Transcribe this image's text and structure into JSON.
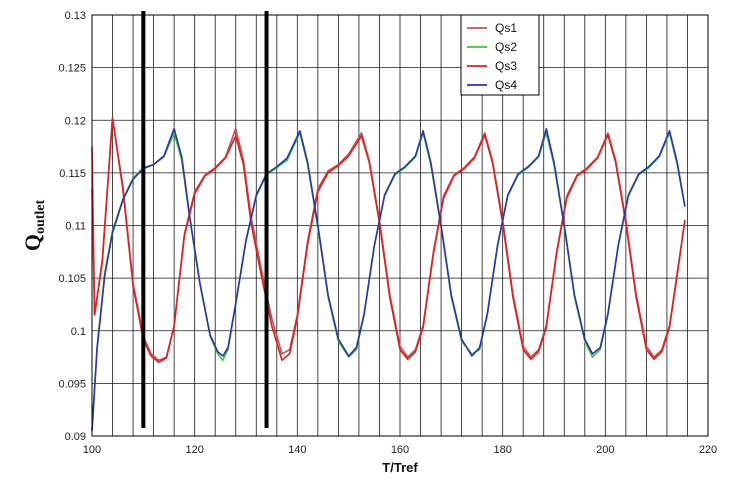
{
  "chart_data": {
    "type": "line",
    "title": "",
    "xlabel": "T/Tref",
    "ylabel_main": "Q",
    "ylabel_sub": "outlet",
    "xlim": [
      100,
      220
    ],
    "ylim": [
      0.09,
      0.13
    ],
    "x_ticks": [
      100,
      120,
      140,
      160,
      180,
      200,
      220
    ],
    "x_tick_labels": [
      "100",
      "120",
      "140",
      "160",
      "180",
      "200",
      "220"
    ],
    "x_minor_gridlines": [
      100,
      104,
      108,
      112,
      116,
      120,
      124,
      128,
      132,
      136,
      140,
      144,
      148,
      152,
      156,
      160,
      164,
      168,
      172,
      176,
      180,
      184,
      188,
      192,
      196,
      200,
      204,
      208,
      212,
      216,
      220
    ],
    "y_ticks": [
      0.09,
      0.095,
      0.1,
      0.105,
      0.11,
      0.115,
      0.12,
      0.125,
      0.13
    ],
    "y_tick_labels": [
      "0.09",
      "0.095",
      "0.1",
      "0.105",
      "0.11",
      "0.115",
      "0.12",
      "0.125",
      "0.13"
    ],
    "grid": true,
    "legend_position": "top-right",
    "vertical_markers": [
      110,
      134
    ],
    "series": [
      {
        "name": "Qs1",
        "color": "#c0504d",
        "points": [
          [
            100,
            0.1134
          ],
          [
            100.5,
            0.1015
          ],
          [
            102,
            0.1068
          ],
          [
            104,
            0.1202
          ],
          [
            106,
            0.1138
          ],
          [
            108,
            0.1045
          ],
          [
            110,
            0.0995
          ],
          [
            111.5,
            0.0978
          ],
          [
            113,
            0.0972
          ],
          [
            114.5,
            0.0975
          ],
          [
            116,
            0.1005
          ],
          [
            118,
            0.1092
          ],
          [
            120,
            0.1132
          ],
          [
            122,
            0.1148
          ],
          [
            124,
            0.1155
          ],
          [
            126,
            0.1165
          ],
          [
            128,
            0.1192
          ],
          [
            129.5,
            0.1162
          ],
          [
            131,
            0.1108
          ],
          [
            133,
            0.1058
          ],
          [
            135,
            0.1012
          ],
          [
            137,
            0.0978
          ],
          [
            138.5,
            0.0982
          ],
          [
            140,
            0.1015
          ],
          [
            142,
            0.1085
          ],
          [
            144,
            0.1135
          ],
          [
            146,
            0.1152
          ],
          [
            148,
            0.1158
          ],
          [
            150,
            0.1168
          ],
          [
            152.5,
            0.1188
          ],
          [
            154,
            0.1162
          ],
          [
            156,
            0.1105
          ],
          [
            158,
            0.1035
          ],
          [
            160,
            0.0985
          ],
          [
            161.5,
            0.0975
          ],
          [
            163,
            0.0982
          ],
          [
            164.5,
            0.1005
          ],
          [
            166.5,
            0.1075
          ],
          [
            168.5,
            0.1128
          ],
          [
            170.5,
            0.1148
          ],
          [
            172.5,
            0.1155
          ],
          [
            174.5,
            0.1165
          ],
          [
            176.5,
            0.1188
          ],
          [
            178,
            0.1162
          ],
          [
            180,
            0.1105
          ],
          [
            182,
            0.1035
          ],
          [
            184,
            0.0985
          ],
          [
            185.5,
            0.0975
          ],
          [
            187,
            0.0982
          ],
          [
            188.5,
            0.1005
          ],
          [
            190.5,
            0.1075
          ],
          [
            192.5,
            0.1128
          ],
          [
            194.5,
            0.1148
          ],
          [
            196.5,
            0.1155
          ],
          [
            198.5,
            0.1165
          ],
          [
            200.5,
            0.1188
          ],
          [
            202,
            0.1162
          ],
          [
            204,
            0.1105
          ],
          [
            206,
            0.1035
          ],
          [
            208,
            0.0985
          ],
          [
            209.5,
            0.0975
          ],
          [
            211,
            0.0982
          ],
          [
            212.5,
            0.1005
          ],
          [
            214,
            0.1055
          ],
          [
            215.5,
            0.1105
          ]
        ]
      },
      {
        "name": "Qs2",
        "color": "#33cc33",
        "points": [
          [
            100,
            0.0905
          ],
          [
            101,
            0.0985
          ],
          [
            102.5,
            0.1055
          ],
          [
            104,
            0.1095
          ],
          [
            106,
            0.1125
          ],
          [
            108,
            0.1145
          ],
          [
            110,
            0.1155
          ],
          [
            112,
            0.1158
          ],
          [
            114,
            0.1165
          ],
          [
            116,
            0.1188
          ],
          [
            117.5,
            0.1162
          ],
          [
            119,
            0.1108
          ],
          [
            121,
            0.1045
          ],
          [
            123,
            0.0995
          ],
          [
            124.5,
            0.0978
          ],
          [
            125.5,
            0.0972
          ],
          [
            126.5,
            0.0982
          ],
          [
            128,
            0.1025
          ],
          [
            130,
            0.1085
          ],
          [
            132,
            0.1128
          ],
          [
            134,
            0.1148
          ],
          [
            136,
            0.1155
          ],
          [
            138,
            0.1162
          ],
          [
            140.5,
            0.1188
          ],
          [
            142,
            0.1158
          ],
          [
            144,
            0.1098
          ],
          [
            146,
            0.1032
          ],
          [
            148,
            0.099
          ],
          [
            150,
            0.0975
          ],
          [
            151.5,
            0.0982
          ],
          [
            153,
            0.1015
          ],
          [
            155,
            0.108
          ],
          [
            157,
            0.1128
          ],
          [
            159,
            0.1148
          ],
          [
            161,
            0.1155
          ],
          [
            163,
            0.1165
          ],
          [
            164.5,
            0.1188
          ],
          [
            166,
            0.1158
          ],
          [
            168,
            0.1098
          ],
          [
            170,
            0.1032
          ],
          [
            172,
            0.099
          ],
          [
            174,
            0.0978
          ],
          [
            175.5,
            0.0982
          ],
          [
            177,
            0.1015
          ],
          [
            179,
            0.108
          ],
          [
            181,
            0.1128
          ],
          [
            183,
            0.1148
          ],
          [
            185,
            0.1155
          ],
          [
            187,
            0.1165
          ],
          [
            188.5,
            0.1188
          ],
          [
            190,
            0.1158
          ],
          [
            192,
            0.1098
          ],
          [
            194,
            0.1032
          ],
          [
            196,
            0.099
          ],
          [
            197.5,
            0.0975
          ],
          [
            199,
            0.0982
          ],
          [
            200.5,
            0.1015
          ],
          [
            202.5,
            0.108
          ],
          [
            204.5,
            0.1128
          ],
          [
            206.5,
            0.1148
          ],
          [
            208.5,
            0.1155
          ],
          [
            210.5,
            0.1165
          ],
          [
            212.5,
            0.1188
          ],
          [
            214,
            0.1158
          ],
          [
            215.5,
            0.1118
          ]
        ]
      },
      {
        "name": "Qs3",
        "color": "#e02020",
        "points": [
          [
            100,
            0.1175
          ],
          [
            100.5,
            0.1015
          ],
          [
            102,
            0.1065
          ],
          [
            104,
            0.1202
          ],
          [
            106,
            0.1135
          ],
          [
            108,
            0.1042
          ],
          [
            110,
            0.0992
          ],
          [
            111.5,
            0.0976
          ],
          [
            113,
            0.097
          ],
          [
            114.5,
            0.0974
          ],
          [
            116,
            0.1004
          ],
          [
            118,
            0.109
          ],
          [
            120,
            0.113
          ],
          [
            122,
            0.1147
          ],
          [
            124,
            0.1154
          ],
          [
            126,
            0.1164
          ],
          [
            128,
            0.1185
          ],
          [
            129.5,
            0.1158
          ],
          [
            131,
            0.1102
          ],
          [
            133,
            0.1052
          ],
          [
            135,
            0.1005
          ],
          [
            137,
            0.0972
          ],
          [
            138.5,
            0.0978
          ],
          [
            140,
            0.1012
          ],
          [
            142,
            0.1082
          ],
          [
            144,
            0.1132
          ],
          [
            146,
            0.115
          ],
          [
            148,
            0.1157
          ],
          [
            150,
            0.1166
          ],
          [
            152.5,
            0.1185
          ],
          [
            154,
            0.116
          ],
          [
            156,
            0.1102
          ],
          [
            158,
            0.1032
          ],
          [
            160,
            0.0982
          ],
          [
            161.5,
            0.0973
          ],
          [
            163,
            0.098
          ],
          [
            164.5,
            0.1003
          ],
          [
            166.5,
            0.1073
          ],
          [
            168.5,
            0.1126
          ],
          [
            170.5,
            0.1147
          ],
          [
            172.5,
            0.1154
          ],
          [
            174.5,
            0.1164
          ],
          [
            176.5,
            0.1186
          ],
          [
            178,
            0.116
          ],
          [
            180,
            0.1102
          ],
          [
            182,
            0.1032
          ],
          [
            184,
            0.0982
          ],
          [
            185.5,
            0.0973
          ],
          [
            187,
            0.098
          ],
          [
            188.5,
            0.1003
          ],
          [
            190.5,
            0.1073
          ],
          [
            192.5,
            0.1126
          ],
          [
            194.5,
            0.1147
          ],
          [
            196.5,
            0.1154
          ],
          [
            198.5,
            0.1164
          ],
          [
            200.5,
            0.1186
          ],
          [
            202,
            0.116
          ],
          [
            204,
            0.1102
          ],
          [
            206,
            0.1032
          ],
          [
            208,
            0.0982
          ],
          [
            209.5,
            0.0973
          ],
          [
            211,
            0.098
          ],
          [
            212.5,
            0.1003
          ],
          [
            214,
            0.1053
          ],
          [
            215.5,
            0.1105
          ]
        ]
      },
      {
        "name": "Qs4",
        "color": "#3030b0",
        "points": [
          [
            100,
            0.0905
          ],
          [
            101,
            0.0983
          ],
          [
            102.5,
            0.1053
          ],
          [
            104,
            0.1093
          ],
          [
            106,
            0.1124
          ],
          [
            108,
            0.1144
          ],
          [
            110,
            0.1154
          ],
          [
            112,
            0.1158
          ],
          [
            114,
            0.1166
          ],
          [
            116,
            0.1192
          ],
          [
            117.5,
            0.1165
          ],
          [
            119,
            0.111
          ],
          [
            121,
            0.1046
          ],
          [
            123,
            0.0996
          ],
          [
            124.5,
            0.098
          ],
          [
            125.5,
            0.0976
          ],
          [
            126.5,
            0.0984
          ],
          [
            128,
            0.1026
          ],
          [
            130,
            0.1086
          ],
          [
            132,
            0.1129
          ],
          [
            134,
            0.1149
          ],
          [
            136,
            0.1156
          ],
          [
            138,
            0.1164
          ],
          [
            140.5,
            0.119
          ],
          [
            142,
            0.116
          ],
          [
            144,
            0.11
          ],
          [
            146,
            0.1034
          ],
          [
            148,
            0.0992
          ],
          [
            150,
            0.0976
          ],
          [
            151.5,
            0.0984
          ],
          [
            153,
            0.1016
          ],
          [
            155,
            0.1081
          ],
          [
            157,
            0.1129
          ],
          [
            159,
            0.1149
          ],
          [
            161,
            0.1156
          ],
          [
            163,
            0.1166
          ],
          [
            164.5,
            0.119
          ],
          [
            166,
            0.116
          ],
          [
            168,
            0.11
          ],
          [
            170,
            0.1034
          ],
          [
            172,
            0.0992
          ],
          [
            174,
            0.0976
          ],
          [
            175.5,
            0.0984
          ],
          [
            177,
            0.1016
          ],
          [
            179,
            0.1081
          ],
          [
            181,
            0.1129
          ],
          [
            183,
            0.1149
          ],
          [
            185,
            0.1156
          ],
          [
            187,
            0.1166
          ],
          [
            188.5,
            0.1192
          ],
          [
            190,
            0.116
          ],
          [
            192,
            0.11
          ],
          [
            194,
            0.1034
          ],
          [
            196,
            0.0992
          ],
          [
            197.5,
            0.0978
          ],
          [
            199,
            0.0984
          ],
          [
            200.5,
            0.1016
          ],
          [
            202.5,
            0.1081
          ],
          [
            204.5,
            0.1129
          ],
          [
            206.5,
            0.1149
          ],
          [
            208.5,
            0.1156
          ],
          [
            210.5,
            0.1166
          ],
          [
            212.5,
            0.119
          ],
          [
            214,
            0.116
          ],
          [
            215.5,
            0.1118
          ]
        ]
      }
    ]
  }
}
